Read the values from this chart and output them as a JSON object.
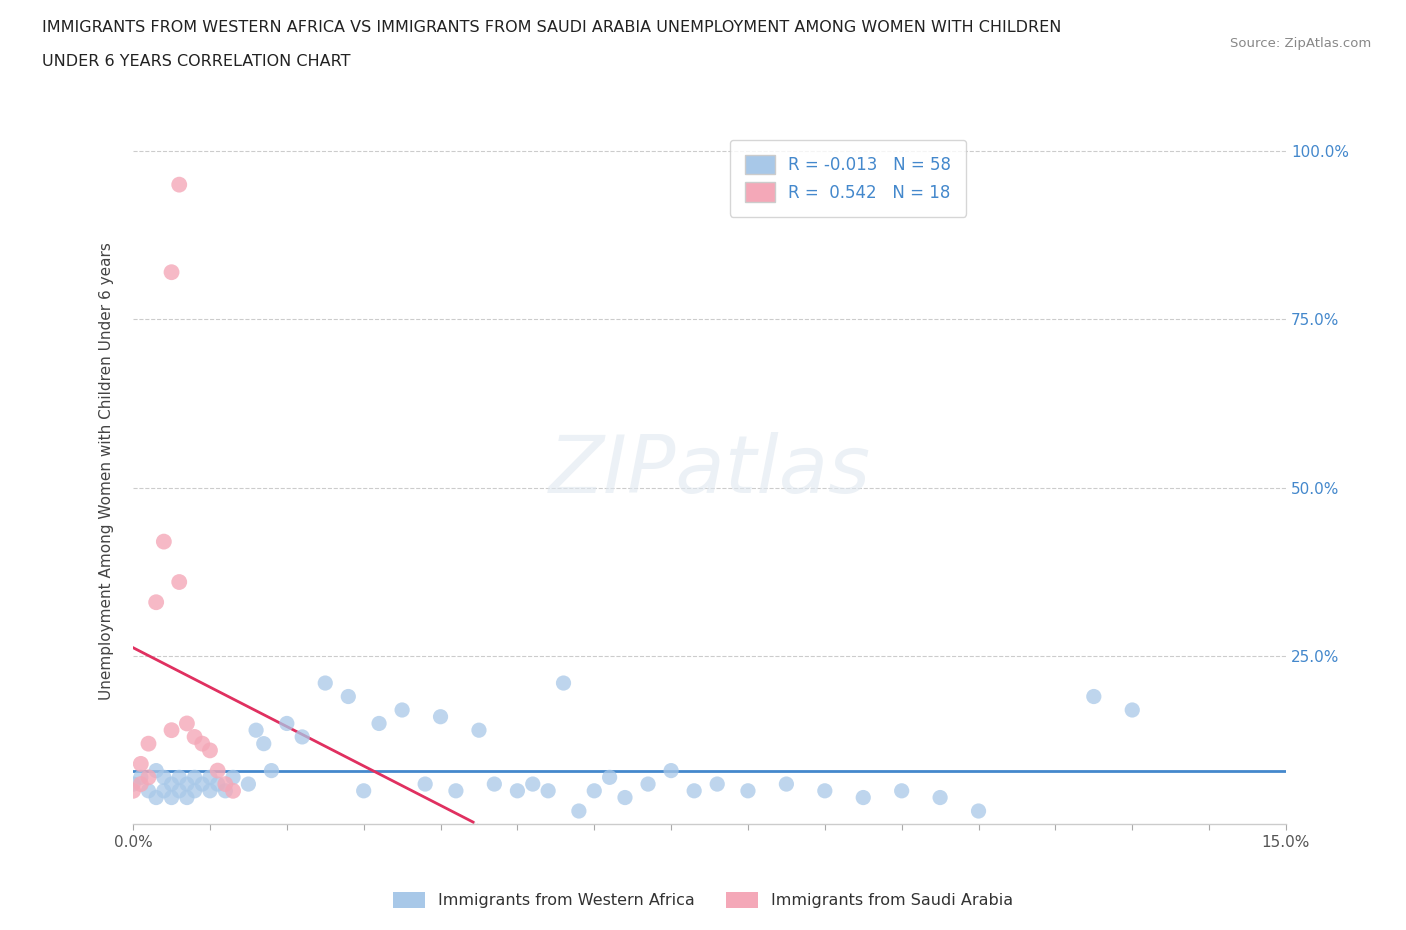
{
  "title_line1": "IMMIGRANTS FROM WESTERN AFRICA VS IMMIGRANTS FROM SAUDI ARABIA UNEMPLOYMENT AMONG WOMEN WITH CHILDREN",
  "title_line2": "UNDER 6 YEARS CORRELATION CHART",
  "source_text": "Source: ZipAtlas.com",
  "ylabel": "Unemployment Among Women with Children Under 6 years",
  "legend_label_blue": "Immigrants from Western Africa",
  "legend_label_pink": "Immigrants from Saudi Arabia",
  "R_blue": -0.013,
  "N_blue": 58,
  "R_pink": 0.542,
  "N_pink": 18,
  "color_blue": "#a8c8e8",
  "color_pink": "#f4a8b8",
  "regression_line_blue": "#4488cc",
  "regression_line_pink": "#e03060",
  "dashed_line_color": "#cccccc",
  "watermark": "ZIPatlas",
  "background_color": "#ffffff",
  "xlim": [
    0.0,
    0.15
  ],
  "ylim": [
    0.0,
    1.05
  ],
  "blue_x": [
    0.0,
    0.001,
    0.002,
    0.003,
    0.003,
    0.004,
    0.004,
    0.005,
    0.005,
    0.006,
    0.006,
    0.007,
    0.007,
    0.008,
    0.008,
    0.009,
    0.01,
    0.01,
    0.011,
    0.012,
    0.013,
    0.015,
    0.016,
    0.017,
    0.018,
    0.02,
    0.022,
    0.025,
    0.028,
    0.03,
    0.032,
    0.035,
    0.038,
    0.04,
    0.042,
    0.045,
    0.047,
    0.05,
    0.052,
    0.054,
    0.056,
    0.058,
    0.06,
    0.062,
    0.064,
    0.067,
    0.07,
    0.073,
    0.076,
    0.08,
    0.085,
    0.09,
    0.095,
    0.1,
    0.105,
    0.11,
    0.125,
    0.13
  ],
  "blue_y": [
    0.06,
    0.07,
    0.05,
    0.04,
    0.08,
    0.05,
    0.07,
    0.06,
    0.04,
    0.05,
    0.07,
    0.06,
    0.04,
    0.05,
    0.07,
    0.06,
    0.05,
    0.07,
    0.06,
    0.05,
    0.07,
    0.06,
    0.14,
    0.12,
    0.08,
    0.15,
    0.13,
    0.21,
    0.19,
    0.05,
    0.15,
    0.17,
    0.06,
    0.16,
    0.05,
    0.14,
    0.06,
    0.05,
    0.06,
    0.05,
    0.21,
    0.02,
    0.05,
    0.07,
    0.04,
    0.06,
    0.08,
    0.05,
    0.06,
    0.05,
    0.06,
    0.05,
    0.04,
    0.05,
    0.04,
    0.02,
    0.19,
    0.17
  ],
  "pink_x": [
    0.0,
    0.001,
    0.001,
    0.002,
    0.002,
    0.003,
    0.004,
    0.005,
    0.005,
    0.006,
    0.006,
    0.007,
    0.008,
    0.009,
    0.01,
    0.011,
    0.012,
    0.013
  ],
  "pink_y": [
    0.05,
    0.06,
    0.09,
    0.07,
    0.12,
    0.33,
    0.42,
    0.14,
    0.82,
    0.36,
    0.95,
    0.15,
    0.13,
    0.12,
    0.11,
    0.08,
    0.06,
    0.05
  ]
}
